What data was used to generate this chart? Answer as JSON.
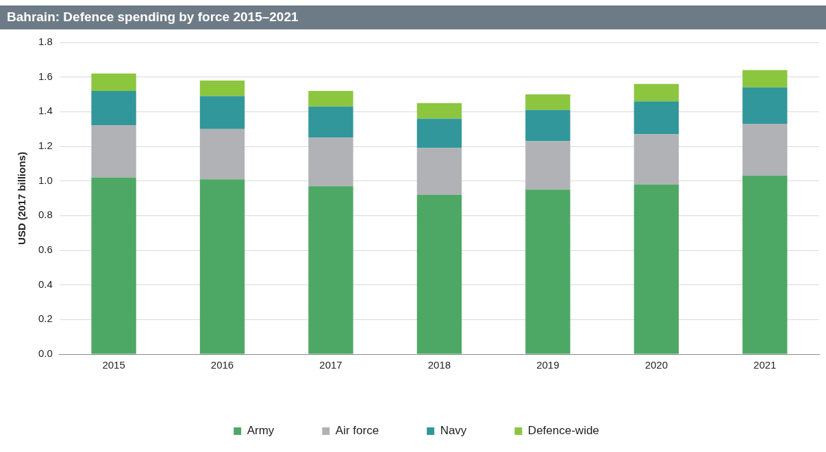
{
  "chart_data": {
    "type": "bar",
    "title": "Bahrain: Defence spending by force 2015–2021",
    "ylabel": "USD (2017 billions)",
    "stacked": true,
    "categories": [
      "2015",
      "2016",
      "2017",
      "2018",
      "2019",
      "2020",
      "2021"
    ],
    "series": [
      {
        "name": "Army",
        "color": "#4ea865",
        "values": [
          1.02,
          1.01,
          0.97,
          0.92,
          0.95,
          0.98,
          1.03
        ]
      },
      {
        "name": "Air force",
        "color": "#b1b2b5",
        "values": [
          0.3,
          0.29,
          0.28,
          0.27,
          0.28,
          0.29,
          0.3
        ]
      },
      {
        "name": "Navy",
        "color": "#31979a",
        "values": [
          0.2,
          0.19,
          0.18,
          0.17,
          0.18,
          0.19,
          0.21
        ]
      },
      {
        "name": "Defence-wide",
        "color": "#8cc63f",
        "values": [
          0.1,
          0.09,
          0.09,
          0.09,
          0.09,
          0.1,
          0.1
        ]
      }
    ],
    "ylim": [
      0,
      1.8
    ],
    "yticks": [
      {
        "value": 0,
        "label": "0.0"
      },
      {
        "value": 0.2,
        "label": "0.2"
      },
      {
        "value": 0.4,
        "label": "0.4"
      },
      {
        "value": 0.6,
        "label": "0.6"
      },
      {
        "value": 0.8,
        "label": "0.8"
      },
      {
        "value": 1,
        "label": "1.0"
      },
      {
        "value": 1.2,
        "label": "1.2"
      },
      {
        "value": 1.4,
        "label": "1.4"
      },
      {
        "value": 1.6,
        "label": "1.6"
      },
      {
        "value": 1.8,
        "label": "1.8"
      }
    ],
    "grid": "y",
    "legend": "bottom"
  }
}
